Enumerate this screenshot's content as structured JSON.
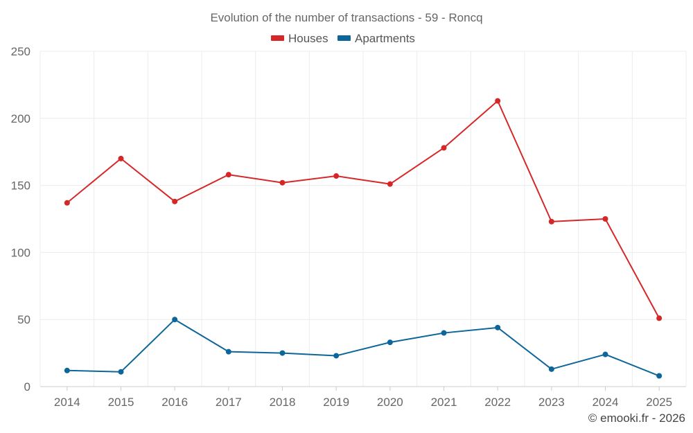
{
  "chart_data": {
    "type": "line",
    "title": "Evolution of the number of transactions - 59 - Roncq",
    "xlabel": "",
    "ylabel": "",
    "categories": [
      "2014",
      "2015",
      "2016",
      "2017",
      "2018",
      "2019",
      "2020",
      "2021",
      "2022",
      "2023",
      "2024",
      "2025"
    ],
    "ylim": [
      0,
      250
    ],
    "yticks": [
      "0",
      "50",
      "100",
      "150",
      "200",
      "250"
    ],
    "grid": true,
    "legend_position": "top-center",
    "series": [
      {
        "name": "Houses",
        "color": "#d62728",
        "values": [
          137,
          170,
          138,
          158,
          152,
          157,
          151,
          178,
          213,
          123,
          125,
          51
        ]
      },
      {
        "name": "Apartments",
        "color": "#0d6699",
        "values": [
          12,
          11,
          50,
          26,
          25,
          23,
          33,
          40,
          44,
          13,
          24,
          8
        ]
      }
    ]
  },
  "credit": "© emooki.fr - 2026"
}
